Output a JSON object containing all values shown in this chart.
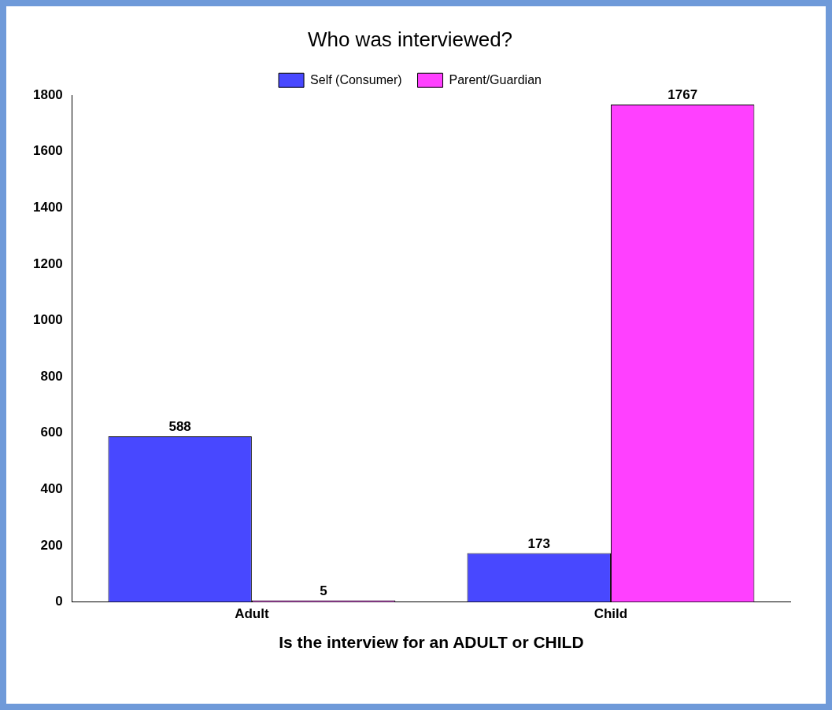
{
  "chart_data": {
    "type": "bar",
    "title": "Who was interviewed?",
    "xlabel": "Is the interview for an ADULT or CHILD",
    "categories": [
      "Adult",
      "Child"
    ],
    "series": [
      {
        "name": "Self (Consumer)",
        "color": "#4848ff",
        "values": [
          588,
          173
        ]
      },
      {
        "name": "Parent/Guardian",
        "color": "#ff40ff",
        "values": [
          5,
          1767
        ]
      }
    ],
    "ylim": [
      0,
      1800
    ],
    "yticks": [
      0,
      200,
      400,
      600,
      800,
      1000,
      1200,
      1400,
      1600,
      1800
    ],
    "grid": false,
    "legend": "top",
    "data_labels": true
  }
}
